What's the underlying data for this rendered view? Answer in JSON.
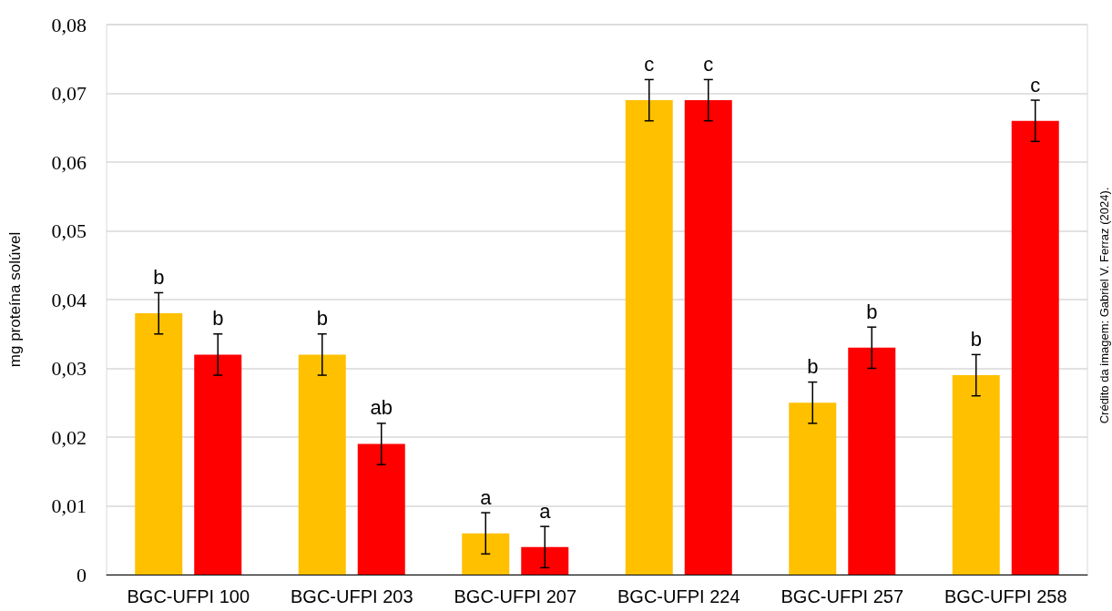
{
  "chart_data": {
    "type": "bar",
    "ylabel": "mg proteína solúvel",
    "categories": [
      "BGC-UFPI 100",
      "BGC-UFPI 203",
      "BGC-UFPI 207",
      "BGC-UFPI 224",
      "BGC-UFPI 257",
      "BGC-UFPI 258"
    ],
    "series": [
      {
        "color": "#ffc000",
        "values": [
          0.038,
          0.032,
          0.006,
          0.069,
          0.025,
          0.029
        ],
        "errors": [
          0.003,
          0.003,
          0.003,
          0.003,
          0.003,
          0.003
        ],
        "value_labels": [
          "b",
          "b",
          "a",
          "c",
          "b",
          "b"
        ]
      },
      {
        "color": "#ff0000",
        "values": [
          0.032,
          0.019,
          0.004,
          0.069,
          0.033,
          0.066
        ],
        "errors": [
          0.003,
          0.003,
          0.003,
          0.003,
          0.003,
          0.003
        ],
        "value_labels": [
          "b",
          "ab",
          "a",
          "c",
          "b",
          "c"
        ]
      }
    ],
    "ylim": [
      0,
      0.08
    ],
    "yticks": [
      0,
      {
        "value": 0.01,
        "label": "0,01"
      },
      {
        "value": 0.02,
        "label": "0,02"
      },
      {
        "value": 0.03,
        "label": "0,03"
      },
      {
        "value": 0.04,
        "label": "0,04"
      },
      {
        "value": 0.05,
        "label": "0,05"
      },
      {
        "value": 0.06,
        "label": "0,06"
      },
      {
        "value": 0.07,
        "label": "0,07"
      },
      {
        "value": 0.08,
        "label": "0,08"
      }
    ],
    "grid": "y",
    "annotations": [
      "Crédito da imagem: Gabriel V. Ferraz (2024)."
    ]
  }
}
